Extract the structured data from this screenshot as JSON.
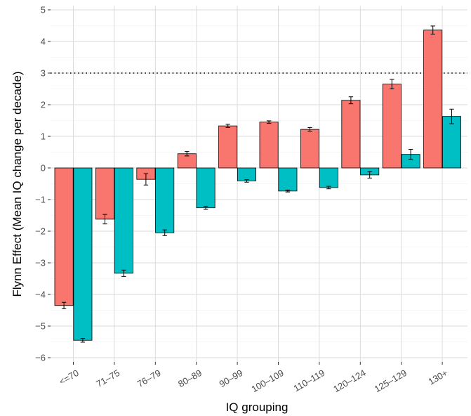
{
  "chart_data": {
    "type": "bar",
    "title": "",
    "xlabel": "IQ grouping",
    "ylabel": "Flynn Effect (Mean IQ change per decade)",
    "ylim": [
      -6,
      5
    ],
    "yticks": [
      5,
      4,
      3,
      2,
      1,
      0,
      -1,
      -2,
      -3,
      -4,
      -5,
      -6
    ],
    "ytick_labels": [
      "5",
      "4",
      "3",
      "2",
      "1",
      "0",
      "−1",
      "−2",
      "−3",
      "−4",
      "−5",
      "−6"
    ],
    "grid": true,
    "legend": "none",
    "reference_line": {
      "y": 3,
      "style": "dotted"
    },
    "categories": [
      "<=70",
      "71–75",
      "76–79",
      "80–89",
      "90–99",
      "100–109",
      "110–119",
      "120–124",
      "125–129",
      "130+"
    ],
    "series": [
      {
        "color": "#F8766D",
        "values": [
          -4.35,
          -1.62,
          -0.36,
          0.45,
          1.33,
          1.45,
          1.22,
          2.14,
          2.65,
          4.36
        ],
        "errors": [
          0.1,
          0.15,
          0.18,
          0.07,
          0.05,
          0.04,
          0.06,
          0.11,
          0.15,
          0.13
        ]
      },
      {
        "color": "#00BFC4",
        "values": [
          -5.45,
          -3.33,
          -2.05,
          -1.26,
          -0.41,
          -0.73,
          -0.62,
          -0.22,
          0.43,
          1.63
        ],
        "errors": [
          0.06,
          0.1,
          0.09,
          0.05,
          0.04,
          0.03,
          0.04,
          0.1,
          0.16,
          0.23
        ]
      }
    ]
  }
}
